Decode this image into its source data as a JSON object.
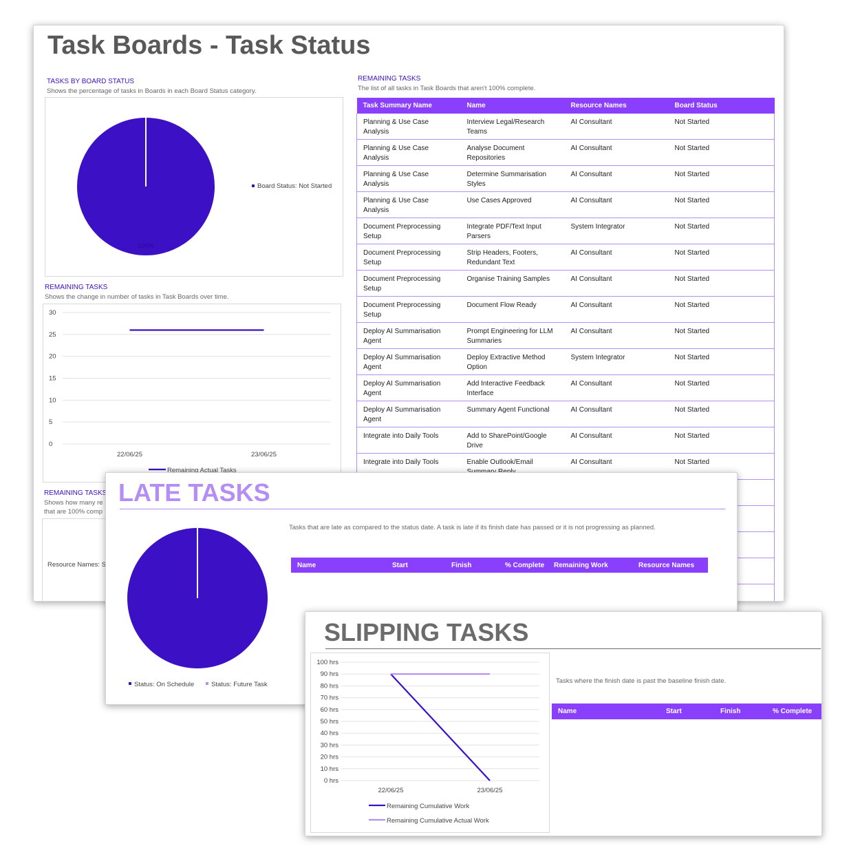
{
  "colors": {
    "accent": "#8a3ffc",
    "primary": "#3c10c4",
    "light": "#b48df5"
  },
  "dashboard": {
    "title": "Task Boards - Task Status",
    "board_status": {
      "title": "TASKS BY BOARD STATUS",
      "description": "Shows the percentage of tasks in Boards in each Board Status category.",
      "legend": "Board Status: Not Started",
      "data_label": "100%",
      "chart_data": {
        "type": "pie",
        "categories": [
          "Board Status: Not Started"
        ],
        "values": [
          100
        ]
      }
    },
    "remaining_chart": {
      "title": "REMAINING TASKS",
      "description": "Shows the change in number of tasks in Task Boards over time.",
      "legend": "Remaining Actual Tasks",
      "chart_data": {
        "type": "line",
        "x": [
          "22/06/25",
          "23/06/25"
        ],
        "series": [
          {
            "name": "Remaining Actual Tasks",
            "values": [
              26,
              26
            ]
          }
        ],
        "ylim": [
          0,
          30
        ],
        "yticks": [
          "30",
          "25",
          "20",
          "15",
          "10",
          "5",
          "0"
        ]
      }
    },
    "remaining_by": {
      "title": "REMAINING TASKS B",
      "desc1": "Shows how many re",
      "desc2": "that are 100% comp",
      "label": "Resource Names: S"
    },
    "remaining_table": {
      "title": "REMAINING TASKS",
      "description": "The list of all tasks in Task Boards that aren't 100% complete.",
      "headers": [
        "Task Summary Name",
        "Name",
        "Resource Names",
        "Board Status"
      ],
      "rows": [
        [
          "Planning & Use Case Analysis",
          "Interview Legal/Research Teams",
          "AI Consultant",
          "Not Started"
        ],
        [
          "Planning & Use Case Analysis",
          "Analyse Document Repositories",
          "AI Consultant",
          "Not Started"
        ],
        [
          "Planning & Use Case Analysis",
          "Determine Summarisation Styles",
          "AI Consultant",
          "Not Started"
        ],
        [
          "Planning & Use Case Analysis",
          "Use Cases Approved",
          "AI Consultant",
          "Not Started"
        ],
        [
          "Document Preprocessing Setup",
          "Integrate PDF/Text Input Parsers",
          "System Integrator",
          "Not Started"
        ],
        [
          "Document Preprocessing Setup",
          "Strip Headers, Footers, Redundant Text",
          "AI Consultant",
          "Not Started"
        ],
        [
          "Document Preprocessing Setup",
          "Organise Training Samples",
          "AI Consultant",
          "Not Started"
        ],
        [
          "Document Preprocessing Setup",
          "Document Flow Ready",
          "AI Consultant",
          "Not Started"
        ],
        [
          "Deploy AI Summarisation Agent",
          "Prompt Engineering for LLM Summaries",
          "AI Consultant",
          "Not Started"
        ],
        [
          "Deploy AI Summarisation Agent",
          "Deploy Extractive Method Option",
          "System Integrator",
          "Not Started"
        ],
        [
          "Deploy AI Summarisation Agent",
          "Add Interactive Feedback Interface",
          "AI Consultant",
          "Not Started"
        ],
        [
          "Deploy AI Summarisation Agent",
          "Summary Agent Functional",
          "AI Consultant",
          "Not Started"
        ],
        [
          "Integrate into Daily Tools",
          "Add to SharePoint/Google Drive",
          "AI Consultant",
          "Not Started"
        ],
        [
          "Integrate into Daily Tools",
          "Enable Outlook/Email Summary Reply",
          "AI Consultant",
          "Not Started"
        ]
      ]
    }
  },
  "late_tasks": {
    "title": "LATE TASKS",
    "description": "Tasks that are late as compared to the status date. A task is late if its finish date has passed or it is not progressing as planned.",
    "headers": [
      "Name",
      "Start",
      "Finish",
      "% Complete",
      "Remaining Work",
      "Resource Names"
    ],
    "legend": [
      "Status: On Schedule",
      "Status: Future Task"
    ],
    "chart_data": {
      "type": "pie",
      "categories": [
        "Status: On Schedule",
        "Status: Future Task"
      ],
      "values": [
        100,
        0
      ]
    }
  },
  "slipping_tasks": {
    "title": "SLIPPING TASKS",
    "description": "Tasks where the finish date is past the baseline finish date.",
    "headers": [
      "Name",
      "Start",
      "Finish",
      "% Complete"
    ],
    "chart_data": {
      "type": "line",
      "x": [
        "22/06/25",
        "23/06/25"
      ],
      "series": [
        {
          "name": "Remaining Cumulative Work",
          "values": [
            90,
            0
          ]
        },
        {
          "name": "Remaining Cumulative Actual Work",
          "values": [
            90,
            90
          ]
        }
      ],
      "ylim": [
        0,
        100
      ],
      "yticks": [
        "100 hrs",
        "90 hrs",
        "80 hrs",
        "70 hrs",
        "60 hrs",
        "50 hrs",
        "40 hrs",
        "30 hrs",
        "20 hrs",
        "10 hrs",
        "0 hrs"
      ]
    }
  }
}
